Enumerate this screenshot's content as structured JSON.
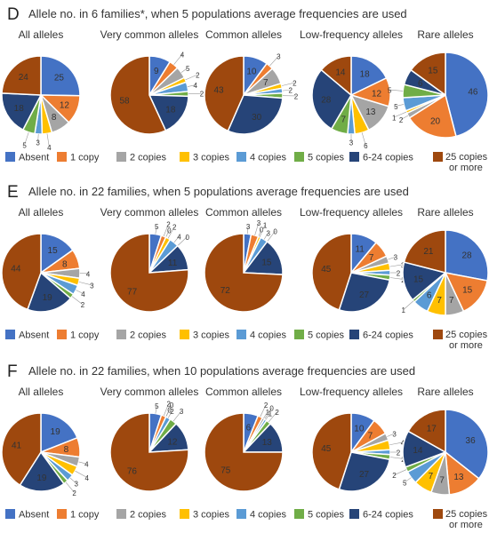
{
  "colors": {
    "Absent": "#4472c4",
    "1 copy": "#ed7d31",
    "2 copies": "#a5a5a5",
    "3 copies": "#ffc000",
    "4 copies": "#5b9bd5",
    "5 copies": "#70ad47",
    "6-24 copies": "#264478",
    "25 copies or more": "#9e480e"
  },
  "legend": [
    "Absent",
    "1 copy",
    "2 copies",
    "3 copies",
    "4 copies",
    "5 copies",
    "6-24 copies",
    "25 copies or more"
  ],
  "chart_data": [
    {
      "panel": "D",
      "title": "Allele no. in 6 families*, when 5 populations average frequencies are used",
      "type": "pie",
      "legend_position": "bottom",
      "charts": [
        {
          "title": "All alleles",
          "values": [
            25,
            12,
            8,
            4,
            3,
            5,
            18,
            24
          ]
        },
        {
          "title": "Very common alleles",
          "values": [
            9,
            4,
            5,
            2,
            4,
            2,
            18,
            58
          ]
        },
        {
          "title": "Common alleles",
          "values": [
            10,
            3,
            7,
            2,
            2,
            2,
            30,
            43
          ]
        },
        {
          "title": "Low-frequency alleles",
          "values": [
            18,
            12,
            13,
            6,
            3,
            7,
            28,
            14
          ]
        },
        {
          "title": "Rare alleles",
          "values": [
            46,
            20,
            2,
            1,
            5,
            5,
            6,
            15
          ]
        }
      ]
    },
    {
      "panel": "E",
      "title": "Allele no. in 22 families, when 5 populations average frequencies are used",
      "type": "pie",
      "legend_position": "bottom",
      "charts": [
        {
          "title": "All alleles",
          "values": [
            15,
            8,
            4,
            3,
            4,
            2,
            19,
            44
          ]
        },
        {
          "title": "Very common alleles",
          "values": [
            5,
            2,
            0,
            2,
            4,
            0,
            11,
            77
          ]
        },
        {
          "title": "Common alleles",
          "values": [
            3,
            3,
            0,
            1,
            3,
            0,
            15,
            72
          ]
        },
        {
          "title": "Low-frequency alleles",
          "values": [
            11,
            7,
            3,
            3,
            2,
            2,
            27,
            45
          ]
        },
        {
          "title": "Rare alleles",
          "values": [
            28,
            15,
            7,
            7,
            6,
            1,
            15,
            21
          ]
        }
      ]
    },
    {
      "panel": "F",
      "title": "Allele no. in 22 families, when 10 populations average frequencies are used",
      "type": "pie",
      "legend_position": "bottom",
      "charts": [
        {
          "title": "All alleles",
          "values": [
            19,
            8,
            4,
            4,
            3,
            2,
            19,
            41
          ]
        },
        {
          "title": "Very common alleles",
          "values": [
            5,
            2,
            0,
            0,
            2,
            3,
            12,
            76
          ]
        },
        {
          "title": "Common alleles",
          "values": [
            6,
            2,
            1,
            0,
            1,
            2,
            13,
            75
          ]
        },
        {
          "title": "Low-frequency alleles",
          "values": [
            10,
            7,
            3,
            4,
            2,
            2,
            27,
            45
          ]
        },
        {
          "title": "Rare alleles",
          "values": [
            36,
            13,
            7,
            7,
            5,
            2,
            14,
            17
          ]
        }
      ]
    }
  ]
}
